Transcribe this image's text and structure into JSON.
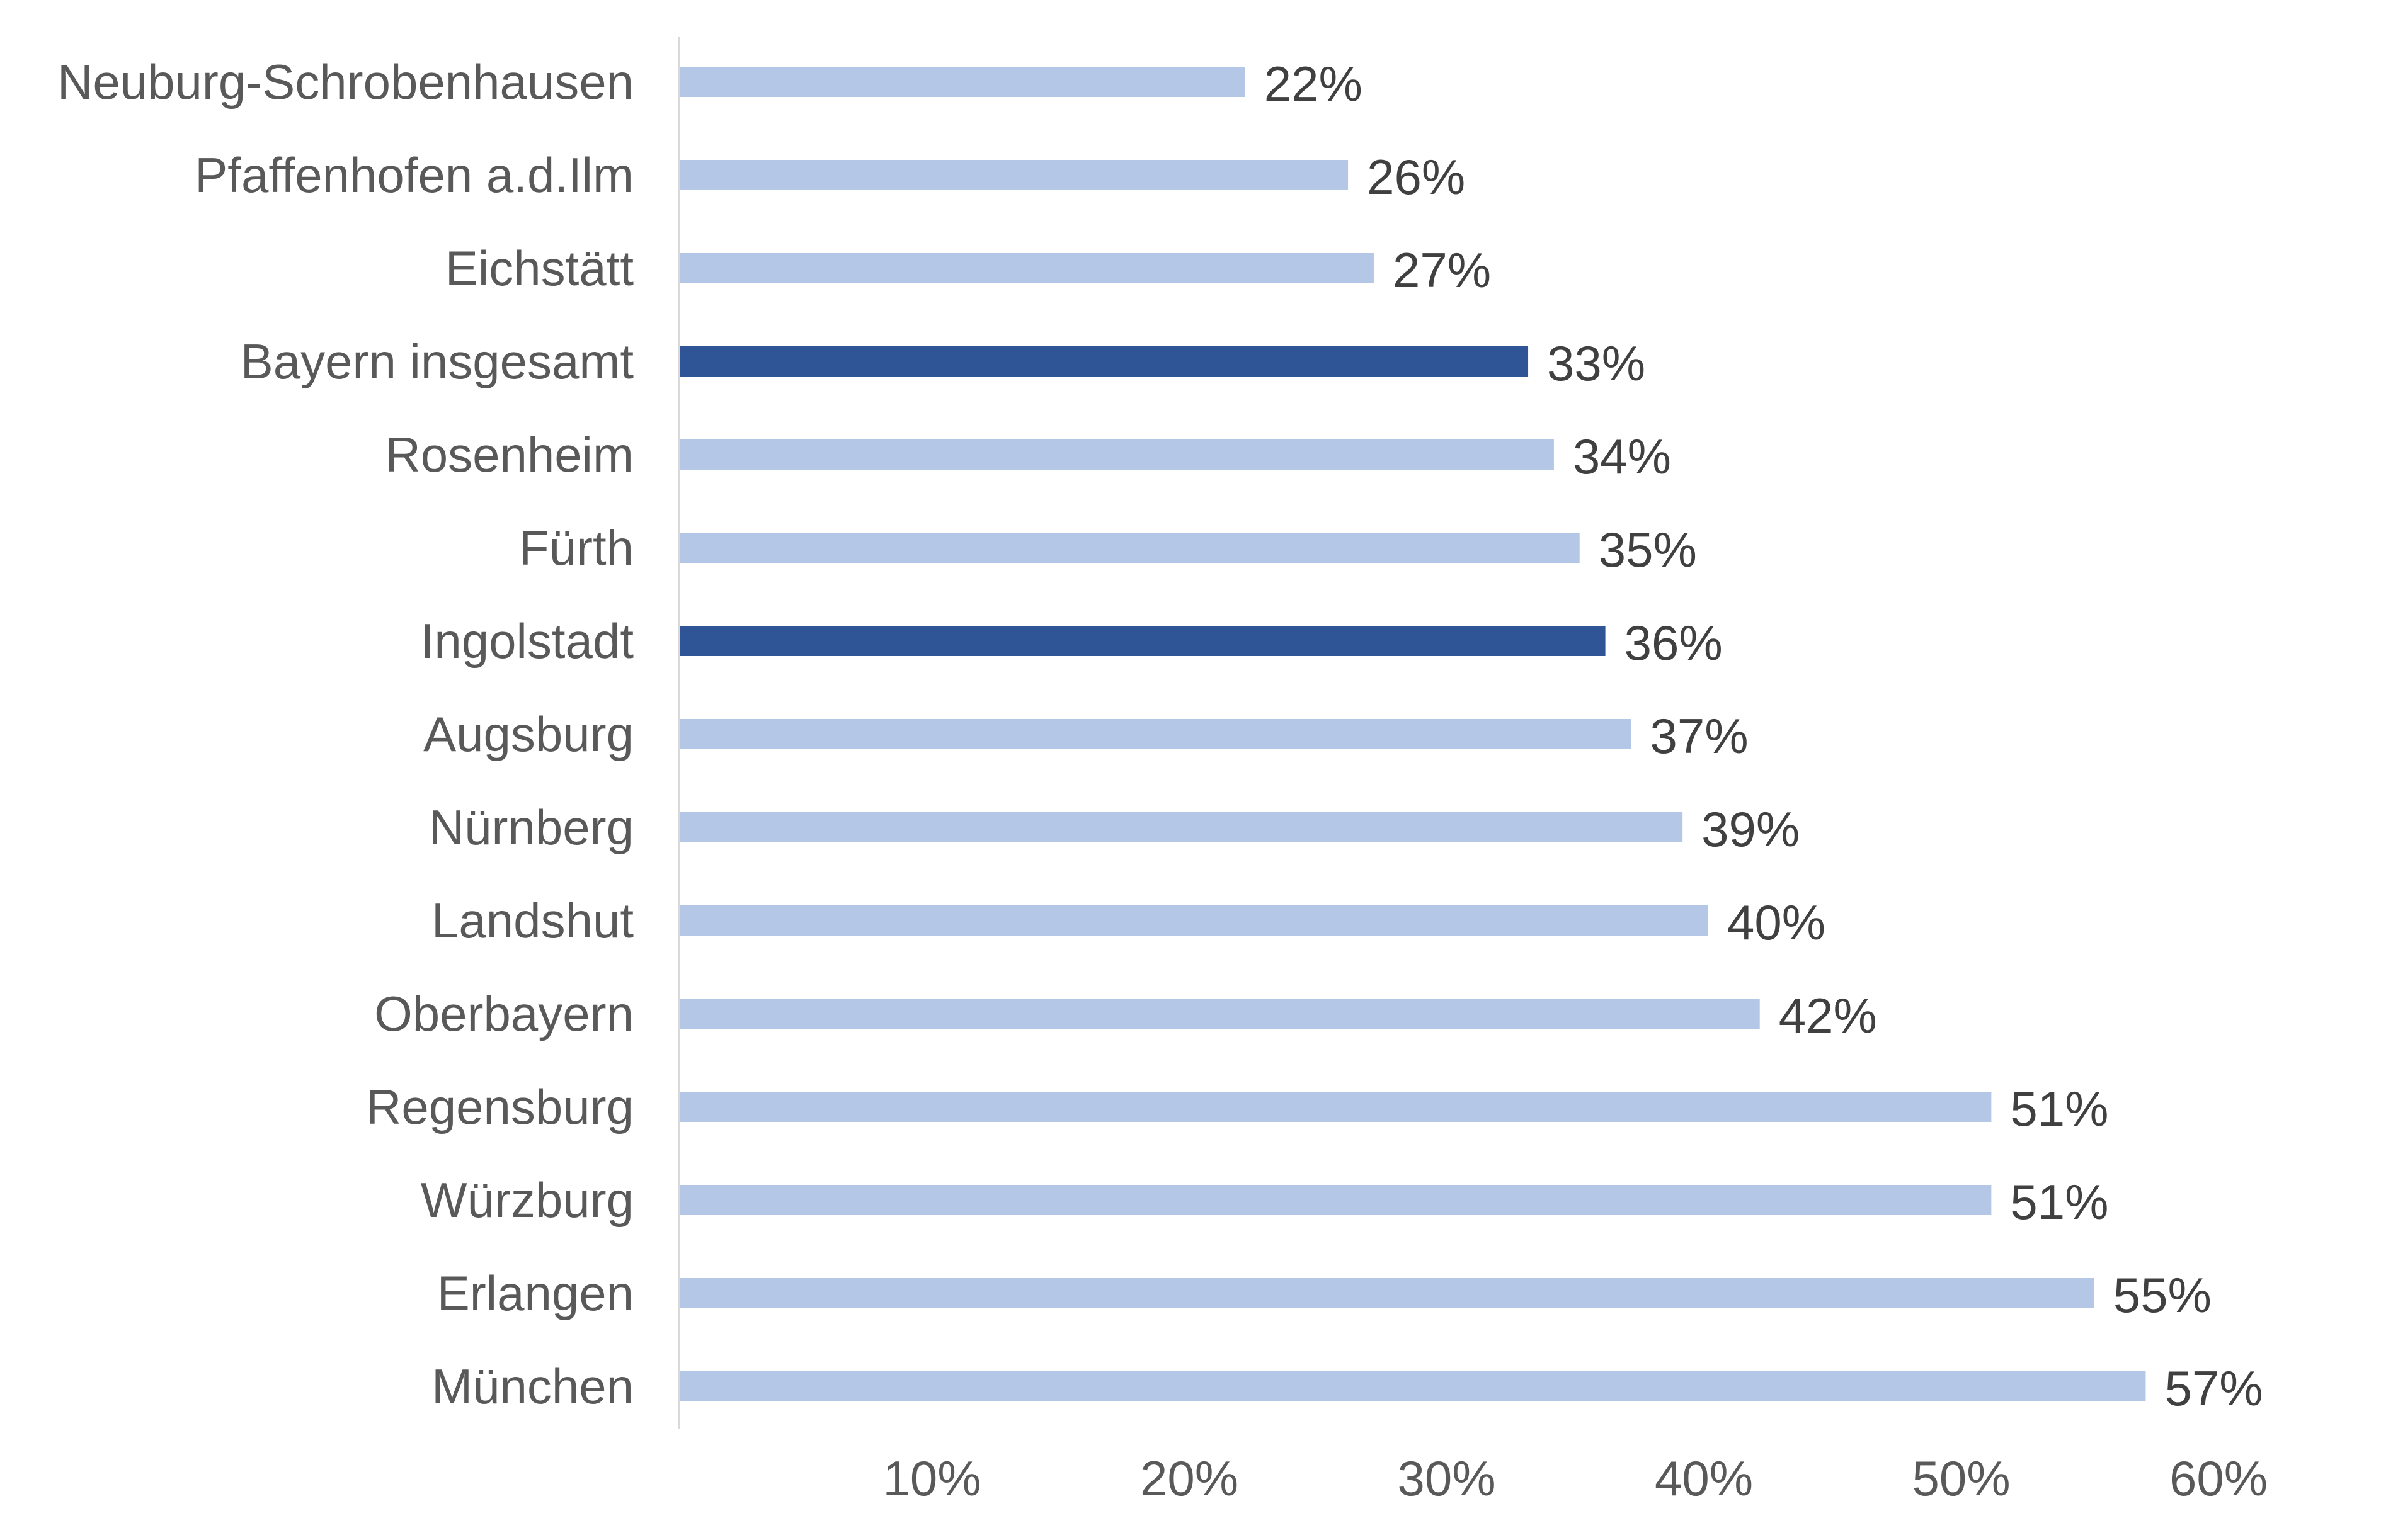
{
  "chart_data": {
    "type": "bar",
    "orientation": "horizontal",
    "categories": [
      "Neuburg-Schrobenhausen",
      "Pfaffenhofen a.d.Ilm",
      "Eichstätt",
      "Bayern insgesamt",
      "Rosenheim",
      "Fürth",
      "Ingolstadt",
      "Augsburg",
      "Nürnberg",
      "Landshut",
      "Oberbayern",
      "Regensburg",
      "Würzburg",
      "Erlangen",
      "München"
    ],
    "values": [
      22,
      26,
      27,
      33,
      34,
      35,
      36,
      37,
      39,
      40,
      42,
      51,
      51,
      55,
      57
    ],
    "value_labels": [
      "22%",
      "26%",
      "27%",
      "33%",
      "34%",
      "35%",
      "36%",
      "37%",
      "39%",
      "40%",
      "42%",
      "51%",
      "51%",
      "55%",
      "57%"
    ],
    "highlighted": [
      "Bayern insgesamt",
      "Ingolstadt"
    ],
    "xlim": [
      0,
      60
    ],
    "x_ticks": [
      10,
      20,
      30,
      40,
      50,
      60
    ],
    "x_tick_labels": [
      "10%",
      "20%",
      "30%",
      "40%",
      "50%",
      "60%"
    ],
    "grid": false,
    "legend": "none",
    "colors": {
      "bar": "#b4c7e7",
      "bar_highlight": "#2f5597",
      "axis_line": "#d9d9d9"
    }
  }
}
